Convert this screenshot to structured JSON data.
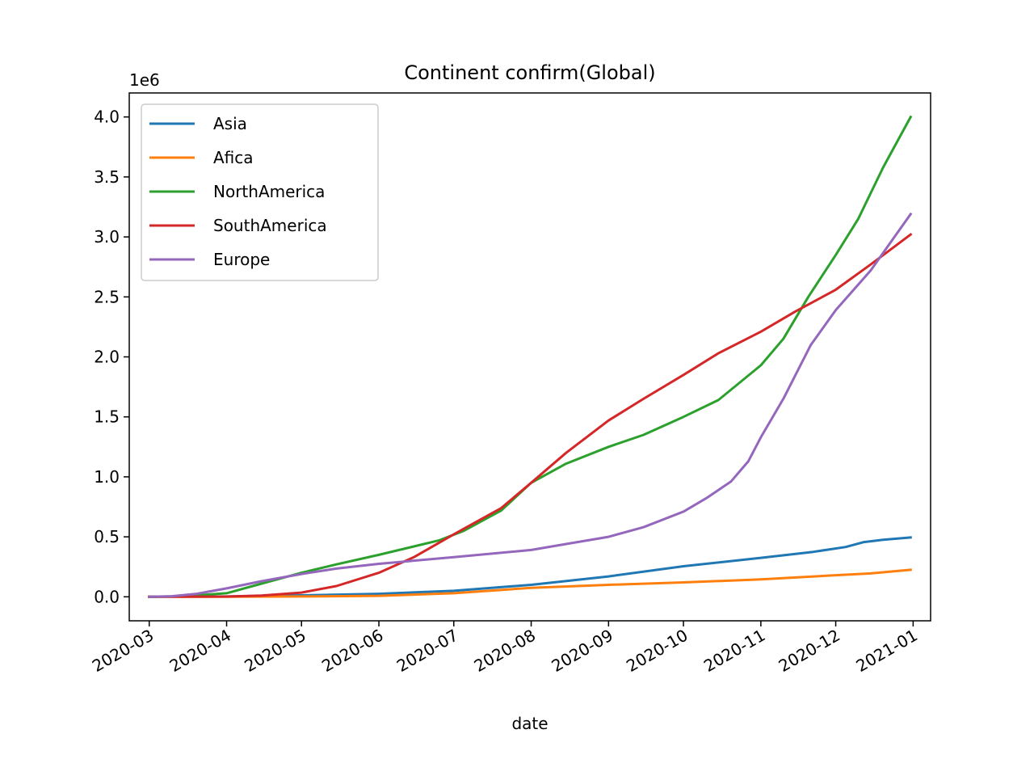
{
  "chart_data": {
    "type": "line",
    "title": "Continent confirm(Global)",
    "xlabel": "date",
    "ylabel": "",
    "y_offset_label": "1e6",
    "y_scale": 1000000,
    "ylim": [
      -200000,
      4200000
    ],
    "xlim": [
      "2020-02-22",
      "2021-01-08"
    ],
    "x_ticks": [
      "2020-03",
      "2020-04",
      "2020-05",
      "2020-06",
      "2020-07",
      "2020-08",
      "2020-09",
      "2020-10",
      "2020-11",
      "2020-12",
      "2021-01"
    ],
    "y_ticks": [
      "0.0",
      "0.5",
      "1.0",
      "1.5",
      "2.0",
      "2.5",
      "3.0",
      "3.5",
      "4.0"
    ],
    "y_tick_values": [
      0,
      500000,
      1000000,
      1500000,
      2000000,
      2500000,
      3000000,
      3500000,
      4000000
    ],
    "legend_position": "upper-left",
    "grid": false,
    "series": [
      {
        "name": "Asia",
        "color": "#1f77b4",
        "points": [
          [
            "2020-03-01",
            0
          ],
          [
            "2020-04-01",
            3000
          ],
          [
            "2020-05-01",
            12000
          ],
          [
            "2020-06-01",
            25000
          ],
          [
            "2020-07-01",
            50000
          ],
          [
            "2020-08-01",
            100000
          ],
          [
            "2020-09-01",
            170000
          ],
          [
            "2020-10-01",
            255000
          ],
          [
            "2020-11-01",
            325000
          ],
          [
            "2020-11-22",
            375000
          ],
          [
            "2020-12-05",
            415000
          ],
          [
            "2020-12-12",
            455000
          ],
          [
            "2020-12-20",
            475000
          ],
          [
            "2020-12-31",
            495000
          ]
        ]
      },
      {
        "name": "Afica",
        "color": "#ff7f0e",
        "points": [
          [
            "2020-03-01",
            0
          ],
          [
            "2020-04-01",
            1000
          ],
          [
            "2020-05-01",
            3000
          ],
          [
            "2020-06-01",
            8000
          ],
          [
            "2020-07-01",
            30000
          ],
          [
            "2020-08-01",
            75000
          ],
          [
            "2020-09-01",
            100000
          ],
          [
            "2020-10-01",
            120000
          ],
          [
            "2020-11-01",
            145000
          ],
          [
            "2020-12-01",
            180000
          ],
          [
            "2020-12-15",
            195000
          ],
          [
            "2020-12-31",
            225000
          ]
        ]
      },
      {
        "name": "NorthAmerica",
        "color": "#2ca02c",
        "points": [
          [
            "2020-03-01",
            0
          ],
          [
            "2020-03-15",
            5000
          ],
          [
            "2020-04-01",
            30000
          ],
          [
            "2020-04-15",
            110000
          ],
          [
            "2020-05-01",
            200000
          ],
          [
            "2020-05-15",
            270000
          ],
          [
            "2020-06-01",
            350000
          ],
          [
            "2020-06-15",
            420000
          ],
          [
            "2020-06-25",
            470000
          ],
          [
            "2020-07-05",
            550000
          ],
          [
            "2020-07-20",
            720000
          ],
          [
            "2020-08-01",
            950000
          ],
          [
            "2020-08-15",
            1110000
          ],
          [
            "2020-09-01",
            1250000
          ],
          [
            "2020-09-15",
            1350000
          ],
          [
            "2020-10-01",
            1500000
          ],
          [
            "2020-10-15",
            1640000
          ],
          [
            "2020-11-01",
            1930000
          ],
          [
            "2020-11-10",
            2150000
          ],
          [
            "2020-11-20",
            2500000
          ],
          [
            "2020-12-01",
            2850000
          ],
          [
            "2020-12-10",
            3150000
          ],
          [
            "2020-12-20",
            3580000
          ],
          [
            "2020-12-31",
            4000000
          ]
        ]
      },
      {
        "name": "SouthAmerica",
        "color": "#d62728",
        "points": [
          [
            "2020-03-01",
            0
          ],
          [
            "2020-04-01",
            2000
          ],
          [
            "2020-04-15",
            10000
          ],
          [
            "2020-05-01",
            35000
          ],
          [
            "2020-05-15",
            90000
          ],
          [
            "2020-06-01",
            200000
          ],
          [
            "2020-06-15",
            330000
          ],
          [
            "2020-07-01",
            520000
          ],
          [
            "2020-07-20",
            740000
          ],
          [
            "2020-08-01",
            950000
          ],
          [
            "2020-08-15",
            1200000
          ],
          [
            "2020-09-01",
            1470000
          ],
          [
            "2020-09-15",
            1650000
          ],
          [
            "2020-10-01",
            1850000
          ],
          [
            "2020-10-15",
            2030000
          ],
          [
            "2020-11-01",
            2210000
          ],
          [
            "2020-11-15",
            2380000
          ],
          [
            "2020-12-01",
            2560000
          ],
          [
            "2020-12-15",
            2770000
          ],
          [
            "2020-12-31",
            3020000
          ]
        ]
      },
      {
        "name": "Europe",
        "color": "#9467bd",
        "points": [
          [
            "2020-03-01",
            0
          ],
          [
            "2020-03-10",
            5000
          ],
          [
            "2020-03-20",
            25000
          ],
          [
            "2020-04-01",
            70000
          ],
          [
            "2020-04-15",
            130000
          ],
          [
            "2020-05-01",
            190000
          ],
          [
            "2020-05-15",
            235000
          ],
          [
            "2020-06-01",
            275000
          ],
          [
            "2020-07-01",
            330000
          ],
          [
            "2020-08-01",
            390000
          ],
          [
            "2020-08-15",
            440000
          ],
          [
            "2020-09-01",
            500000
          ],
          [
            "2020-09-15",
            580000
          ],
          [
            "2020-10-01",
            710000
          ],
          [
            "2020-10-10",
            820000
          ],
          [
            "2020-10-20",
            960000
          ],
          [
            "2020-10-27",
            1130000
          ],
          [
            "2020-11-01",
            1330000
          ],
          [
            "2020-11-10",
            1650000
          ],
          [
            "2020-11-21",
            2100000
          ],
          [
            "2020-12-01",
            2390000
          ],
          [
            "2020-12-15",
            2720000
          ],
          [
            "2020-12-31",
            3190000
          ]
        ]
      }
    ]
  }
}
